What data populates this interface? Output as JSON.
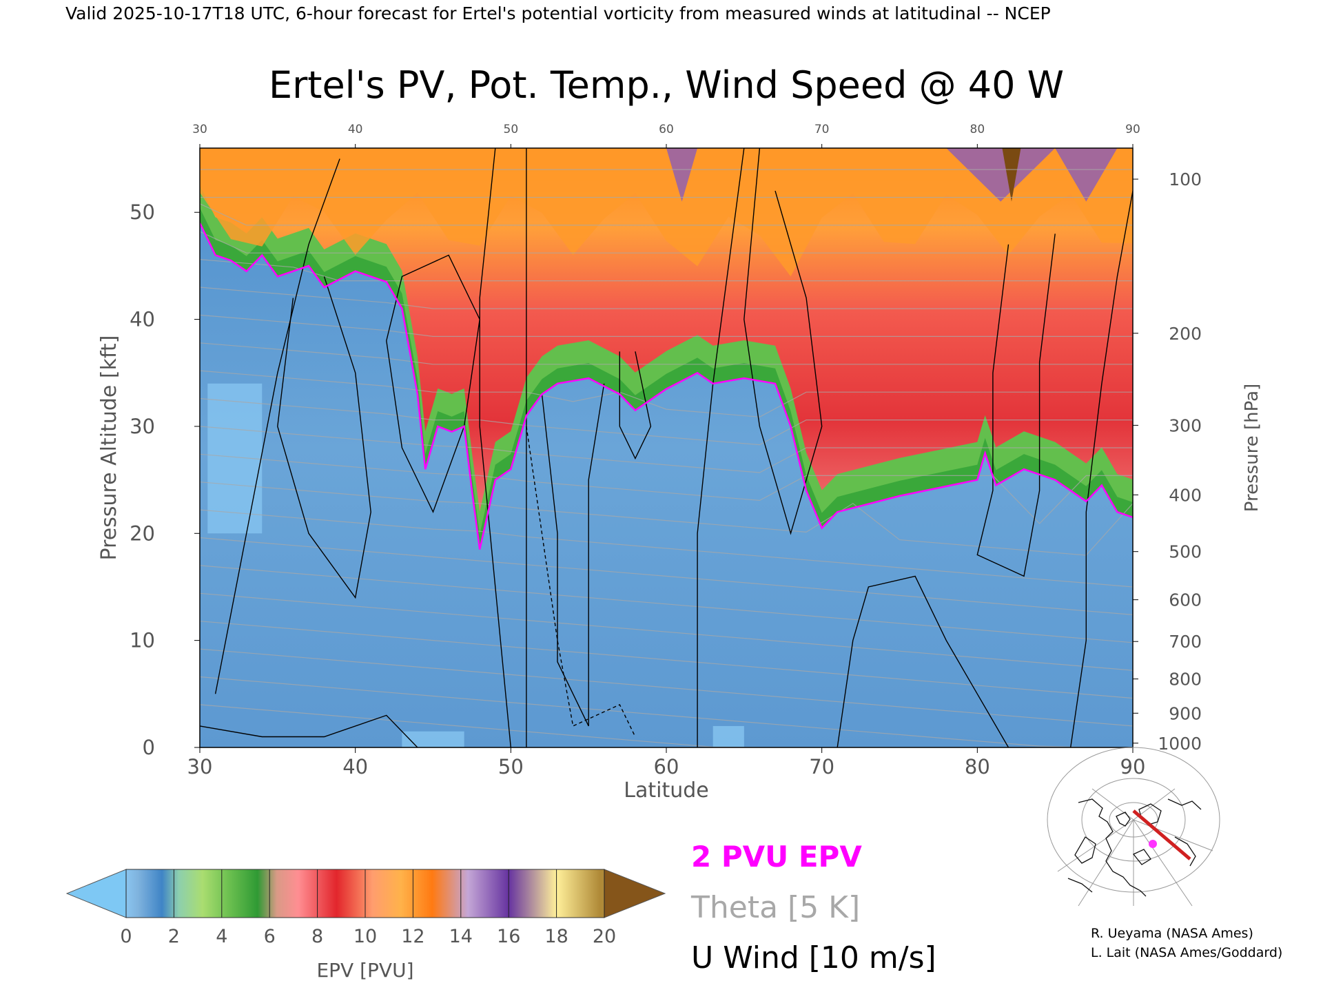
{
  "header": {
    "valid_line": "Valid 2025-10-17T18 UTC, 6-hour forecast for Ertel's potential vorticity from measured winds at latitudinal -- NCEP"
  },
  "chart_data": {
    "type": "heatmap",
    "title": "Ertel's PV, Pot. Temp., Wind Speed @ 40 W",
    "xlabel": "Latitude",
    "ylabel": "Pressure Altitude [kft]",
    "y2label": "Pressure [hPa]",
    "xlim": [
      30,
      90
    ],
    "ylim": [
      0,
      56
    ],
    "x_ticks": [
      30,
      40,
      50,
      60,
      70,
      80,
      90
    ],
    "y_ticks": [
      0,
      10,
      20,
      30,
      40,
      50
    ],
    "pressure_ticks": [
      {
        "hpa": 100,
        "kft": 53.1
      },
      {
        "hpa": 200,
        "kft": 38.7
      },
      {
        "hpa": 300,
        "kft": 30.1
      },
      {
        "hpa": 400,
        "kft": 23.6
      },
      {
        "hpa": 500,
        "kft": 18.3
      },
      {
        "hpa": 600,
        "kft": 13.8
      },
      {
        "hpa": 700,
        "kft": 9.9
      },
      {
        "hpa": 800,
        "kft": 6.4
      },
      {
        "hpa": 900,
        "kft": 3.2
      },
      {
        "hpa": 1000,
        "kft": 0.4
      }
    ],
    "tropopause_2pvu_kft": [
      {
        "lat": 30,
        "kft": 49
      },
      {
        "lat": 31,
        "kft": 46
      },
      {
        "lat": 32,
        "kft": 45.5
      },
      {
        "lat": 33,
        "kft": 44.5
      },
      {
        "lat": 34,
        "kft": 46
      },
      {
        "lat": 35,
        "kft": 44
      },
      {
        "lat": 37,
        "kft": 45
      },
      {
        "lat": 38,
        "kft": 43
      },
      {
        "lat": 40,
        "kft": 44.5
      },
      {
        "lat": 42,
        "kft": 43.5
      },
      {
        "lat": 43,
        "kft": 41
      },
      {
        "lat": 44,
        "kft": 33
      },
      {
        "lat": 44.5,
        "kft": 26
      },
      {
        "lat": 45.3,
        "kft": 30
      },
      {
        "lat": 46.2,
        "kft": 29.5
      },
      {
        "lat": 47,
        "kft": 30
      },
      {
        "lat": 47.5,
        "kft": 24
      },
      {
        "lat": 48,
        "kft": 18.5
      },
      {
        "lat": 49,
        "kft": 25
      },
      {
        "lat": 50,
        "kft": 26
      },
      {
        "lat": 51,
        "kft": 31
      },
      {
        "lat": 52,
        "kft": 33
      },
      {
        "lat": 53,
        "kft": 34
      },
      {
        "lat": 55,
        "kft": 34.5
      },
      {
        "lat": 57,
        "kft": 33
      },
      {
        "lat": 58,
        "kft": 31.5
      },
      {
        "lat": 60,
        "kft": 33.5
      },
      {
        "lat": 62,
        "kft": 35
      },
      {
        "lat": 63,
        "kft": 34
      },
      {
        "lat": 65,
        "kft": 34.5
      },
      {
        "lat": 67,
        "kft": 34
      },
      {
        "lat": 68,
        "kft": 30
      },
      {
        "lat": 69,
        "kft": 24
      },
      {
        "lat": 70,
        "kft": 20.5
      },
      {
        "lat": 71,
        "kft": 22
      },
      {
        "lat": 75,
        "kft": 23.5
      },
      {
        "lat": 80,
        "kft": 25
      },
      {
        "lat": 80.5,
        "kft": 27.5
      },
      {
        "lat": 81.2,
        "kft": 24.5
      },
      {
        "lat": 83,
        "kft": 26
      },
      {
        "lat": 85,
        "kft": 25
      },
      {
        "lat": 87,
        "kft": 23
      },
      {
        "lat": 88,
        "kft": 24.5
      },
      {
        "lat": 89,
        "kft": 22
      },
      {
        "lat": 90,
        "kft": 21.5
      }
    ],
    "colorbar": {
      "label": "EPV [PVU]",
      "ticks": [
        0,
        2,
        4,
        6,
        8,
        10,
        12,
        14,
        16,
        18,
        20
      ],
      "colors": [
        {
          "pvu": 0,
          "color": "#8ac5ef"
        },
        {
          "pvu": 0.5,
          "color": "#7fb3de"
        },
        {
          "pvu": 1.5,
          "color": "#3f84c6"
        },
        {
          "pvu": 2.2,
          "color": "#8dcfae"
        },
        {
          "pvu": 3.2,
          "color": "#aadd70"
        },
        {
          "pvu": 4.3,
          "color": "#6cc050"
        },
        {
          "pvu": 5.5,
          "color": "#2f9a34"
        },
        {
          "pvu": 6.3,
          "color": "#d99a86"
        },
        {
          "pvu": 7.2,
          "color": "#ff8e92"
        },
        {
          "pvu": 8.8,
          "color": "#e2262c"
        },
        {
          "pvu": 10.3,
          "color": "#ff9d6e"
        },
        {
          "pvu": 11.5,
          "color": "#ffb24a"
        },
        {
          "pvu": 12.8,
          "color": "#ff7a12"
        },
        {
          "pvu": 14.3,
          "color": "#c4a6d6"
        },
        {
          "pvu": 16,
          "color": "#6633a0"
        },
        {
          "pvu": 18,
          "color": "#fff09a"
        },
        {
          "pvu": 19.8,
          "color": "#b08a38"
        }
      ],
      "under_color": "#7ec8f4",
      "over_color": "#85551a"
    },
    "legend": [
      {
        "label": "2 PVU EPV",
        "color": "#ff00ff"
      },
      {
        "label": "Theta [5 K]",
        "color": "#a8a8a8"
      },
      {
        "label": "U Wind [10 m/s]",
        "color": "#000000"
      }
    ],
    "colors": {
      "troposphere_blue": "#5b97d0",
      "stratosphere_red": "#e63a3f",
      "stratosphere_orange": "#ff9a2a",
      "green_band": "#3aa83a",
      "theta_line": "#a8a8a8",
      "track_red": "#d02020",
      "location_dot": "#ff33ff"
    }
  },
  "credits": {
    "line1": "R. Ueyama (NASA Ames)",
    "line2": "L. Lait (NASA Ames/Goddard)"
  }
}
